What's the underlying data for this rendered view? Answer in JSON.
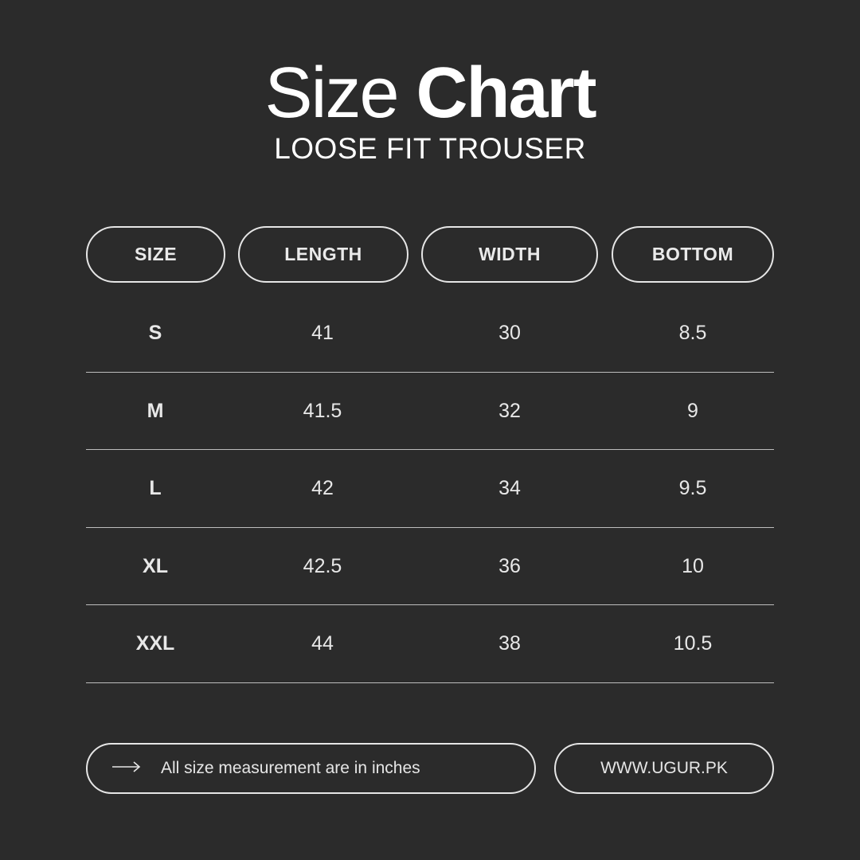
{
  "title": {
    "light": "Size",
    "bold": "Chart"
  },
  "subtitle": "LOOSE FIT TROUSER",
  "columns": [
    "SIZE",
    "LENGTH",
    "WIDTH",
    "BOTTOM"
  ],
  "rows": [
    [
      "S",
      "41",
      "30",
      "8.5"
    ],
    [
      "M",
      "41.5",
      "32",
      "9"
    ],
    [
      "L",
      "42",
      "34",
      "9.5"
    ],
    [
      "XL",
      "42.5",
      "36",
      "10"
    ],
    [
      "XXL",
      "44",
      "38",
      "10.5"
    ]
  ],
  "footer": {
    "icon": "arrow-right-icon",
    "note": "All size measurement are in inches",
    "website": "WWW.UGUR.PK"
  },
  "colors": {
    "background": "#2b2b2b",
    "foreground": "#ffffff"
  }
}
